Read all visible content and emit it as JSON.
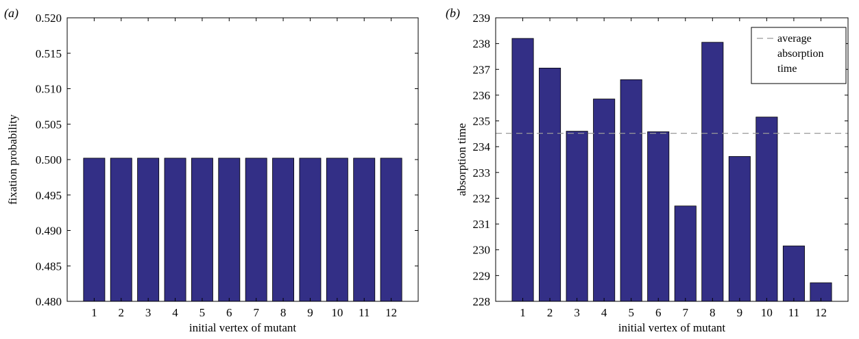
{
  "chart_data": [
    {
      "panel_label": "(a)",
      "type": "bar",
      "xlabel": "initial vertex of mutant",
      "ylabel": "fixation probability",
      "categories": [
        "1",
        "2",
        "3",
        "4",
        "5",
        "6",
        "7",
        "8",
        "9",
        "10",
        "11",
        "12"
      ],
      "values": [
        0.5002,
        0.5002,
        0.5002,
        0.5002,
        0.5002,
        0.5002,
        0.5002,
        0.5002,
        0.5002,
        0.5002,
        0.5002,
        0.5002
      ],
      "ylim": [
        0.48,
        0.52
      ],
      "yticks": [
        "0.480",
        "0.485",
        "0.490",
        "0.495",
        "0.500",
        "0.505",
        "0.510",
        "0.515",
        "0.520"
      ],
      "grid": false,
      "bar_color": "#332f86"
    },
    {
      "panel_label": "(b)",
      "type": "bar",
      "xlabel": "initial vertex of mutant",
      "ylabel": "absorption time",
      "categories": [
        "1",
        "2",
        "3",
        "4",
        "5",
        "6",
        "7",
        "8",
        "9",
        "10",
        "11",
        "12"
      ],
      "values": [
        238.2,
        237.05,
        234.6,
        235.85,
        236.6,
        234.58,
        231.7,
        238.05,
        233.62,
        235.15,
        230.15,
        228.72
      ],
      "ylim": [
        228,
        239
      ],
      "yticks": [
        "228",
        "229",
        "230",
        "231",
        "232",
        "233",
        "234",
        "235",
        "236",
        "237",
        "238",
        "239"
      ],
      "reference_line": {
        "value": 234.52,
        "style": "dashed",
        "color": "#999999",
        "legend_label": "average absorption time"
      },
      "legend": {
        "entries": [
          "average",
          "absorption",
          "time"
        ],
        "placement": "top-right"
      },
      "grid": false,
      "bar_color": "#332f86"
    }
  ]
}
